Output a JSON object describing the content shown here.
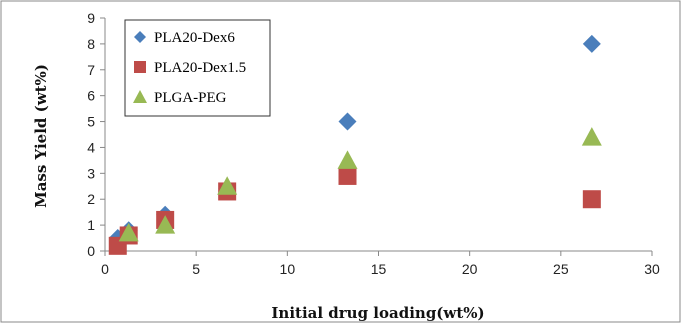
{
  "chart_data": {
    "type": "scatter",
    "title": "",
    "xlabel": "Initial drug loading(wt%)",
    "ylabel": "Mass Yield (wt%)",
    "xlim": [
      0,
      30
    ],
    "ylim": [
      0,
      9
    ],
    "xticks": [
      0,
      5,
      10,
      15,
      20,
      25,
      30
    ],
    "yticks": [
      0,
      1,
      2,
      3,
      4,
      5,
      6,
      7,
      8,
      9
    ],
    "grid": false,
    "legend_position": "top-left",
    "series": [
      {
        "name": "PLA20-Dex6",
        "marker": "diamond",
        "color": "#4a7ebb",
        "x": [
          0.7,
          1.3,
          3.3,
          6.7,
          13.3,
          26.7
        ],
        "y": [
          0.5,
          0.8,
          1.4,
          2.4,
          5.0,
          8.0
        ]
      },
      {
        "name": "PLA20-Dex1.5",
        "marker": "square",
        "color": "#be4b48",
        "x": [
          0.7,
          1.3,
          3.3,
          6.7,
          13.3,
          26.7
        ],
        "y": [
          0.2,
          0.6,
          1.2,
          2.3,
          2.9,
          2.0
        ]
      },
      {
        "name": "PLGA-PEG",
        "marker": "triangle",
        "color": "#98b954",
        "x": [
          1.3,
          3.3,
          6.7,
          13.3,
          26.7
        ],
        "y": [
          0.7,
          1.0,
          2.5,
          3.5,
          4.4
        ]
      }
    ]
  }
}
